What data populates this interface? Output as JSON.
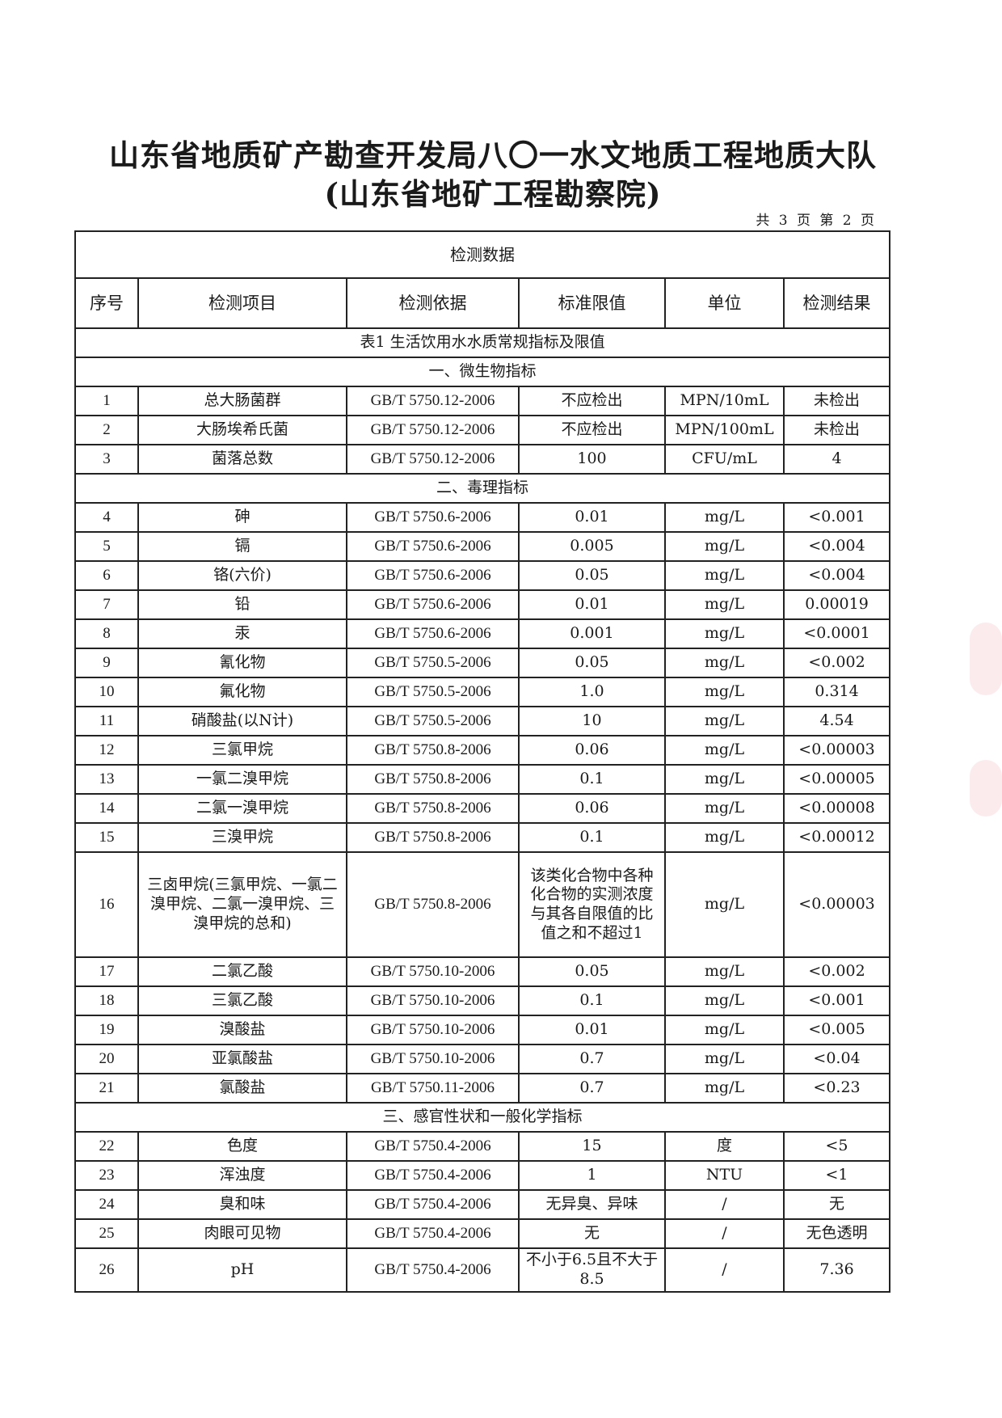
{
  "header": {
    "title_line1": "山东省地质矿产勘查开发局八〇一水文地质工程地质大队",
    "title_line2": "(山东省地矿工程勘察院)",
    "page_info": "共 3 页 第 2 页"
  },
  "table": {
    "caption": "检测数据",
    "columns": [
      "序号",
      "检测项目",
      "检测依据",
      "标准限值",
      "单位",
      "检测结果"
    ],
    "table_title": "表1 生活饮用水水质常规指标及限值",
    "sections": [
      {
        "title": "一、微生物指标",
        "rows": [
          [
            "1",
            "总大肠菌群",
            "GB/T 5750.12-2006",
            "不应检出",
            "MPN/10mL",
            "未检出"
          ],
          [
            "2",
            "大肠埃希氏菌",
            "GB/T 5750.12-2006",
            "不应检出",
            "MPN/100mL",
            "未检出"
          ],
          [
            "3",
            "菌落总数",
            "GB/T 5750.12-2006",
            "100",
            "CFU/mL",
            "4"
          ]
        ]
      },
      {
        "title": "二、毒理指标",
        "rows": [
          [
            "4",
            "砷",
            "GB/T 5750.6-2006",
            "0.01",
            "mg/L",
            "<0.001"
          ],
          [
            "5",
            "镉",
            "GB/T 5750.6-2006",
            "0.005",
            "mg/L",
            "<0.004"
          ],
          [
            "6",
            "铬(六价)",
            "GB/T 5750.6-2006",
            "0.05",
            "mg/L",
            "<0.004"
          ],
          [
            "7",
            "铅",
            "GB/T 5750.6-2006",
            "0.01",
            "mg/L",
            "0.00019"
          ],
          [
            "8",
            "汞",
            "GB/T 5750.6-2006",
            "0.001",
            "mg/L",
            "<0.0001"
          ],
          [
            "9",
            "氰化物",
            "GB/T 5750.5-2006",
            "0.05",
            "mg/L",
            "<0.002"
          ],
          [
            "10",
            "氟化物",
            "GB/T 5750.5-2006",
            "1.0",
            "mg/L",
            "0.314"
          ],
          [
            "11",
            "硝酸盐(以N计)",
            "GB/T 5750.5-2006",
            "10",
            "mg/L",
            "4.54"
          ],
          [
            "12",
            "三氯甲烷",
            "GB/T 5750.8-2006",
            "0.06",
            "mg/L",
            "<0.00003"
          ],
          [
            "13",
            "一氯二溴甲烷",
            "GB/T 5750.8-2006",
            "0.1",
            "mg/L",
            "<0.00005"
          ],
          [
            "14",
            "二氯一溴甲烷",
            "GB/T 5750.8-2006",
            "0.06",
            "mg/L",
            "<0.00008"
          ],
          [
            "15",
            "三溴甲烷",
            "GB/T 5750.8-2006",
            "0.1",
            "mg/L",
            "<0.00012"
          ],
          [
            "16",
            "三卤甲烷(三氯甲烷、一氯二溴甲烷、二氯一溴甲烷、三溴甲烷的总和)",
            "GB/T 5750.8-2006",
            "该类化合物中各种化合物的实测浓度与其各自限值的比值之和不超过1",
            "mg/L",
            "<0.00003"
          ],
          [
            "17",
            "二氯乙酸",
            "GB/T 5750.10-2006",
            "0.05",
            "mg/L",
            "<0.002"
          ],
          [
            "18",
            "三氯乙酸",
            "GB/T 5750.10-2006",
            "0.1",
            "mg/L",
            "<0.001"
          ],
          [
            "19",
            "溴酸盐",
            "GB/T 5750.10-2006",
            "0.01",
            "mg/L",
            "<0.005"
          ],
          [
            "20",
            "亚氯酸盐",
            "GB/T 5750.10-2006",
            "0.7",
            "mg/L",
            "<0.04"
          ],
          [
            "21",
            "氯酸盐",
            "GB/T 5750.11-2006",
            "0.7",
            "mg/L",
            "<0.23"
          ]
        ]
      },
      {
        "title": "三、感官性状和一般化学指标",
        "rows": [
          [
            "22",
            "色度",
            "GB/T 5750.4-2006",
            "15",
            "度",
            "<5"
          ],
          [
            "23",
            "浑浊度",
            "GB/T 5750.4-2006",
            "1",
            "NTU",
            "<1"
          ],
          [
            "24",
            "臭和味",
            "GB/T 5750.4-2006",
            "无异臭、异味",
            "/",
            "无"
          ],
          [
            "25",
            "肉眼可见物",
            "GB/T 5750.4-2006",
            "无",
            "/",
            "无色透明"
          ],
          [
            "26",
            "pH",
            "GB/T 5750.4-2006",
            "不小于6.5且不大于8.5",
            "/",
            "7.36"
          ]
        ]
      }
    ]
  }
}
